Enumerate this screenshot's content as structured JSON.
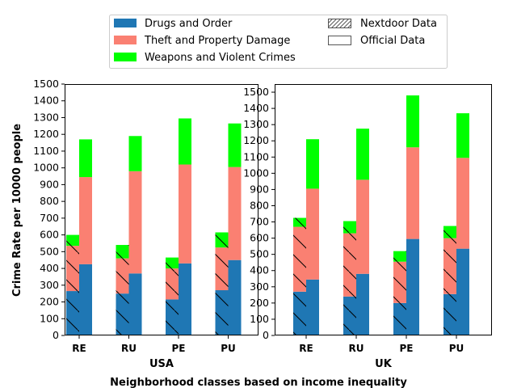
{
  "chart_data": {
    "type": "bar",
    "layout": "two-panel grouped stacked bar",
    "ylabel": "Crime Rate per 10000 people",
    "supxlabel": "Neighborhood classes based on income inequality",
    "categories": [
      "RE",
      "RU",
      "PE",
      "PU"
    ],
    "legend": {
      "placement": "top-center",
      "series": [
        {
          "name": "Drugs and Order",
          "color": "#1f77b4"
        },
        {
          "name": "Theft and Property Damage",
          "color": "#fa8072"
        },
        {
          "name": "Weapons and Violent Crimes",
          "color": "#00ff00"
        }
      ],
      "sources": [
        {
          "name": "Nextdoor Data",
          "pattern": "hatched"
        },
        {
          "name": "Official Data",
          "pattern": "plain"
        }
      ]
    },
    "panels": [
      {
        "xlabel": "USA",
        "ylim": [
          0,
          1500
        ],
        "yticks": [
          0,
          100,
          200,
          300,
          400,
          500,
          600,
          700,
          800,
          900,
          1000,
          1100,
          1200,
          1300,
          1400,
          1500
        ],
        "nextdoor": {
          "Drugs and Order": [
            265,
            250,
            215,
            270
          ],
          "Theft and Property Damage": [
            270,
            210,
            185,
            255
          ],
          "Weapons and Violent Crimes": [
            65,
            80,
            65,
            90
          ]
        },
        "official": {
          "Drugs and Order": [
            425,
            370,
            430,
            450
          ],
          "Theft and Property Damage": [
            520,
            610,
            590,
            555
          ],
          "Weapons and Violent Crimes": [
            225,
            210,
            275,
            260
          ]
        }
      },
      {
        "xlabel": "UK",
        "ylim": [
          0,
          1550
        ],
        "yticks": [
          0,
          100,
          200,
          300,
          400,
          500,
          600,
          700,
          800,
          900,
          1000,
          1100,
          1200,
          1300,
          1400,
          1500
        ],
        "nextdoor": {
          "Drugs and Order": [
            270,
            240,
            200,
            255
          ],
          "Theft and Property Damage": [
            400,
            390,
            255,
            345
          ],
          "Weapons and Violent Crimes": [
            55,
            75,
            65,
            75
          ]
        },
        "official": {
          "Drugs and Order": [
            345,
            380,
            595,
            535
          ],
          "Theft and Property Damage": [
            560,
            580,
            565,
            560
          ],
          "Weapons and Violent Crimes": [
            305,
            315,
            320,
            275
          ]
        }
      }
    ]
  }
}
